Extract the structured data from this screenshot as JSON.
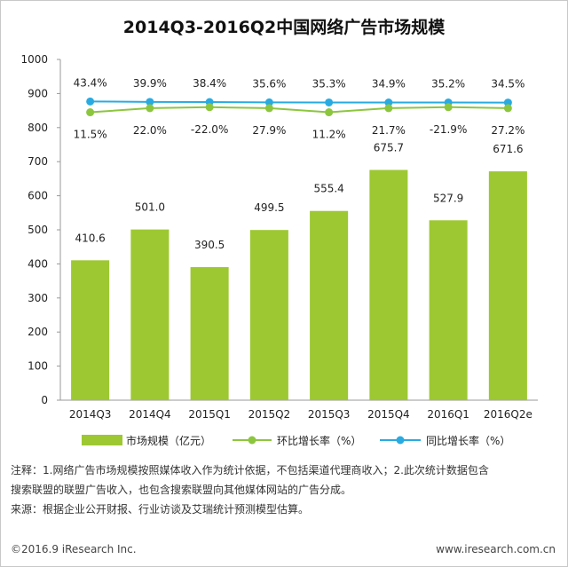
{
  "chart_data": {
    "type": "bar",
    "title": "2014Q3-2016Q2中国网络广告市场规模",
    "categories": [
      "2014Q3",
      "2014Q4",
      "2015Q1",
      "2015Q2",
      "2015Q3",
      "2015Q4",
      "2016Q1",
      "2016Q2e"
    ],
    "ylim": [
      0,
      1000
    ],
    "yticks": [
      0,
      100,
      200,
      300,
      400,
      500,
      600,
      700,
      800,
      900,
      1000
    ],
    "series": [
      {
        "name": "市场规模（亿元）",
        "kind": "bar",
        "color": "#9dc832",
        "values": [
          410.6,
          501.0,
          390.5,
          499.5,
          555.4,
          675.7,
          527.9,
          671.6
        ],
        "labels": [
          "410.6",
          "501.0",
          "390.5",
          "499.5",
          "555.4",
          "675.7",
          "527.9",
          "671.6"
        ]
      },
      {
        "name": "环比增长率（%）",
        "kind": "line",
        "color": "#8cc63f",
        "values": [
          11.5,
          22.0,
          -22.0,
          27.9,
          11.2,
          21.7,
          -21.9,
          27.2
        ],
        "labels": [
          "11.5%",
          "22.0%",
          "-22.0%",
          "27.9%",
          "11.2%",
          "21.7%",
          "-21.9%",
          "27.2%"
        ]
      },
      {
        "name": "同比增长率（%）",
        "kind": "line",
        "color": "#29abe2",
        "values": [
          43.4,
          39.9,
          38.4,
          35.6,
          35.3,
          34.9,
          35.2,
          34.5
        ],
        "labels": [
          "43.4%",
          "39.9%",
          "38.4%",
          "35.6%",
          "35.3%",
          "34.9%",
          "35.2%",
          "34.5%"
        ]
      }
    ],
    "legend_position": "bottom",
    "grid": false
  },
  "notes": {
    "line1": "注释：1.网络广告市场规模按照媒体收入作为统计依据，不包括渠道代理商收入；2.此次统计数据包含",
    "line2": "搜索联盟的联盟广告收入，也包含搜索联盟向其他媒体网站的广告分成。",
    "line3": "来源：根据企业公开财报、行业访谈及艾瑞统计预测模型估算。"
  },
  "footer": {
    "copyright": "©2016.9 iResearch Inc.",
    "website": "www.iresearch.com.cn"
  }
}
